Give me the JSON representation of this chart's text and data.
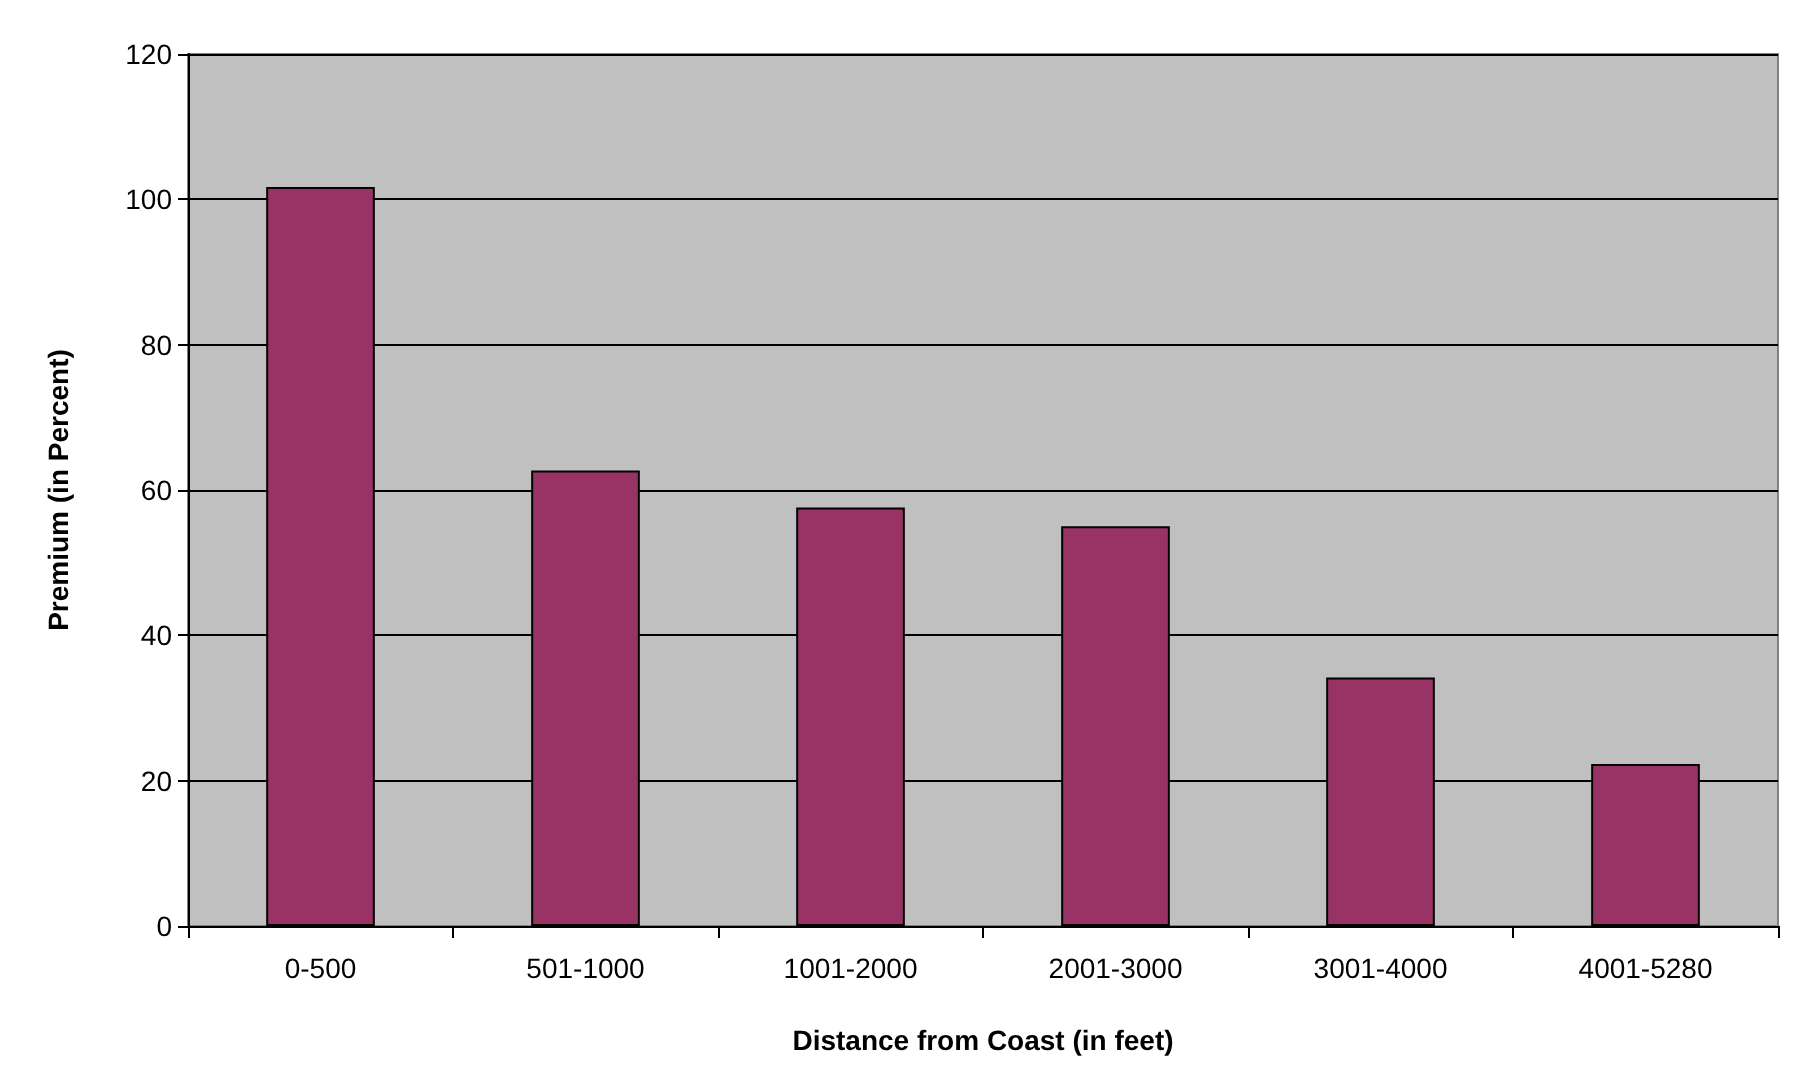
{
  "chart_data": {
    "type": "bar",
    "xlabel": "Distance from Coast (in feet)",
    "ylabel": "Premium (in Percent)",
    "categories": [
      "0-500",
      "501-1000",
      "1001-2000",
      "2001-3000",
      "3001-4000",
      "4001-5280"
    ],
    "values": [
      101.7,
      62.7,
      57.6,
      55,
      34.2,
      22.3
    ],
    "color": "#993366",
    "ylim": [
      0,
      120
    ],
    "yticks": [
      0,
      20,
      40,
      60,
      80,
      100,
      120
    ],
    "grid": "y"
  }
}
